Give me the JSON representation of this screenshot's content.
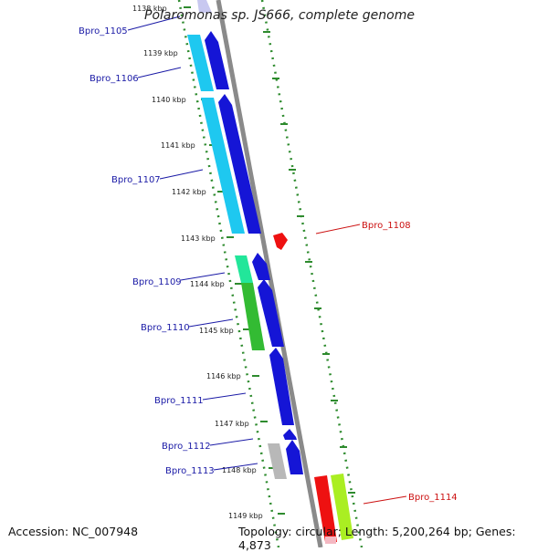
{
  "title": "Polaromonas sp. JS666, complete genome",
  "footer": {
    "accession": "Accession: NC_007948",
    "summary": "Topology: circular; Length: 5,200,264 bp; Genes: 4,873"
  },
  "kbp_ticks": [
    "1138 kbp",
    "1139 kbp",
    "1140 kbp",
    "1141 kbp",
    "1142 kbp",
    "1143 kbp",
    "1144 kbp",
    "1145 kbp",
    "1146 kbp",
    "1147 kbp",
    "1148 kbp",
    "1149 kbp"
  ],
  "gene_labels": [
    {
      "name": "Bpro_1105",
      "color": "#1a1aa6"
    },
    {
      "name": "Bpro_1106",
      "color": "#1a1aa6"
    },
    {
      "name": "Bpro_1107",
      "color": "#1a1aa6"
    },
    {
      "name": "Bpro_1108",
      "color": "#cc1111"
    },
    {
      "name": "Bpro_1109",
      "color": "#1a1aa6"
    },
    {
      "name": "Bpro_1110",
      "color": "#1a1aa6"
    },
    {
      "name": "Bpro_1111",
      "color": "#1a1aa6"
    },
    {
      "name": "Bpro_1112",
      "color": "#1a1aa6"
    },
    {
      "name": "Bpro_1113",
      "color": "#1a1aa6"
    },
    {
      "name": "Bpro_1114",
      "color": "#cc1111"
    }
  ],
  "colors": {
    "backbone": "#8a8a8a",
    "dotted_track": "#2e8b2e",
    "cds_forward": "#1515d6",
    "cds_cyan": "#1ec8f0",
    "cds_green": "#33bb33",
    "cds_seagreen": "#22e69a",
    "cds_gray": "#b8b8b8",
    "cds_red": "#ee1111",
    "cds_lime": "#aaee22"
  }
}
